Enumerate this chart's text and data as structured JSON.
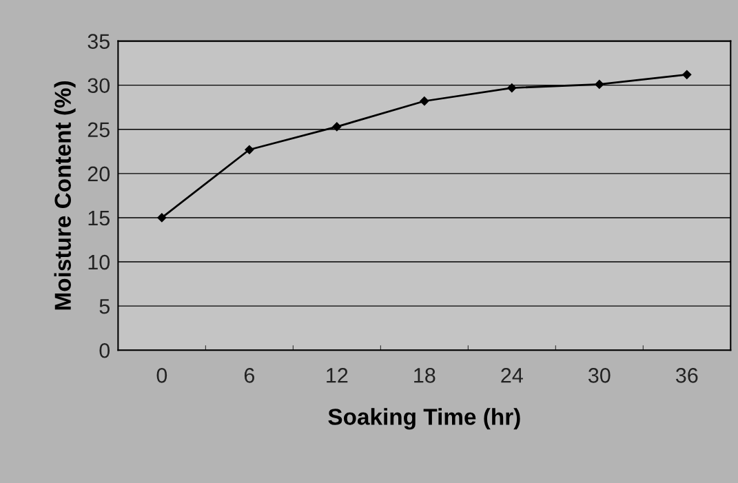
{
  "chart_data": {
    "type": "line",
    "xlabel": "Soaking Time (hr)",
    "ylabel": "Moisture Content (%)",
    "categories": [
      "0",
      "6",
      "12",
      "18",
      "24",
      "30",
      "36"
    ],
    "series": [
      {
        "color": "#000000",
        "values": [
          15,
          22.7,
          25.3,
          28.2,
          29.7,
          30.1,
          31.2
        ]
      }
    ],
    "ylim": [
      0,
      35
    ],
    "yticks": [
      0,
      5,
      10,
      15,
      20,
      25,
      30,
      35
    ],
    "grid": "y",
    "marker": "diamond",
    "line_style": "solid",
    "legend": false
  }
}
